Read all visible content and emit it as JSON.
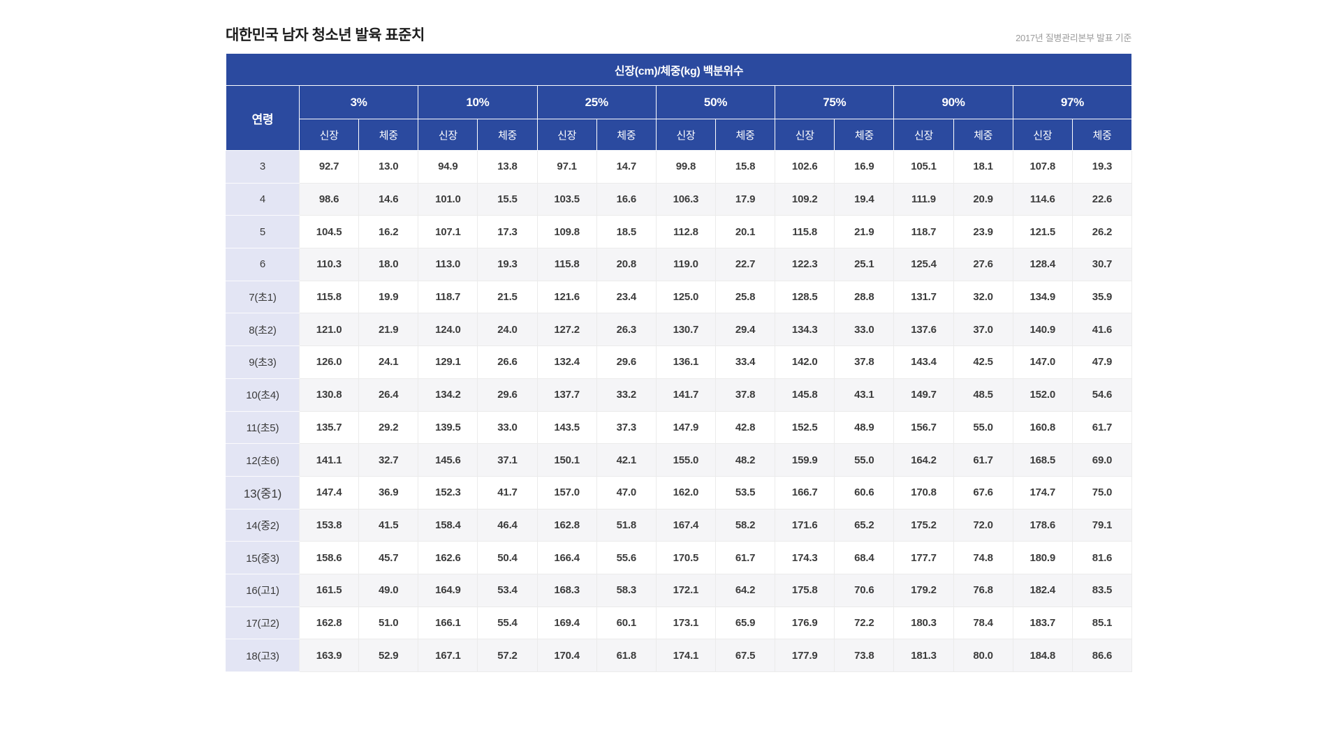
{
  "theme": {
    "header_bg": "#2b4a9f",
    "header_text": "#ffffff",
    "age_bg": "#e3e5f4",
    "alt_row_bg": "#f5f5f7",
    "grid": "#ebebeb",
    "text": "#3c3c3c",
    "title_color": "#1c1c1c",
    "note_color": "#9b9b9b",
    "page_bg": "#ffffff"
  },
  "chart_data": {
    "type": "table",
    "title": "대한민국 남자 청소년 발육 표준치",
    "source_note": "2017년 질병관리본부 발표 기준",
    "group_header": "신장(cm)/체중(kg) 백분위수",
    "age_column_header": "연령",
    "percentile_groups": [
      "3%",
      "10%",
      "25%",
      "50%",
      "75%",
      "90%",
      "97%"
    ],
    "subcolumns": [
      "신장",
      "체중"
    ],
    "rows": [
      {
        "age": "3",
        "values": [
          "92.7",
          "13.0",
          "94.9",
          "13.8",
          "97.1",
          "14.7",
          "99.8",
          "15.8",
          "102.6",
          "16.9",
          "105.1",
          "18.1",
          "107.8",
          "19.3"
        ]
      },
      {
        "age": "4",
        "values": [
          "98.6",
          "14.6",
          "101.0",
          "15.5",
          "103.5",
          "16.6",
          "106.3",
          "17.9",
          "109.2",
          "19.4",
          "111.9",
          "20.9",
          "114.6",
          "22.6"
        ]
      },
      {
        "age": "5",
        "values": [
          "104.5",
          "16.2",
          "107.1",
          "17.3",
          "109.8",
          "18.5",
          "112.8",
          "20.1",
          "115.8",
          "21.9",
          "118.7",
          "23.9",
          "121.5",
          "26.2"
        ]
      },
      {
        "age": "6",
        "values": [
          "110.3",
          "18.0",
          "113.0",
          "19.3",
          "115.8",
          "20.8",
          "119.0",
          "22.7",
          "122.3",
          "25.1",
          "125.4",
          "27.6",
          "128.4",
          "30.7"
        ]
      },
      {
        "age": "7(초1)",
        "values": [
          "115.8",
          "19.9",
          "118.7",
          "21.5",
          "121.6",
          "23.4",
          "125.0",
          "25.8",
          "128.5",
          "28.8",
          "131.7",
          "32.0",
          "134.9",
          "35.9"
        ]
      },
      {
        "age": "8(초2)",
        "values": [
          "121.0",
          "21.9",
          "124.0",
          "24.0",
          "127.2",
          "26.3",
          "130.7",
          "29.4",
          "134.3",
          "33.0",
          "137.6",
          "37.0",
          "140.9",
          "41.6"
        ]
      },
      {
        "age": "9(초3)",
        "values": [
          "126.0",
          "24.1",
          "129.1",
          "26.6",
          "132.4",
          "29.6",
          "136.1",
          "33.4",
          "142.0",
          "37.8",
          "143.4",
          "42.5",
          "147.0",
          "47.9"
        ]
      },
      {
        "age": "10(초4)",
        "values": [
          "130.8",
          "26.4",
          "134.2",
          "29.6",
          "137.7",
          "33.2",
          "141.7",
          "37.8",
          "145.8",
          "43.1",
          "149.7",
          "48.5",
          "152.0",
          "54.6"
        ]
      },
      {
        "age": "11(초5)",
        "values": [
          "135.7",
          "29.2",
          "139.5",
          "33.0",
          "143.5",
          "37.3",
          "147.9",
          "42.8",
          "152.5",
          "48.9",
          "156.7",
          "55.0",
          "160.8",
          "61.7"
        ]
      },
      {
        "age": "12(초6)",
        "values": [
          "141.1",
          "32.7",
          "145.6",
          "37.1",
          "150.1",
          "42.1",
          "155.0",
          "48.2",
          "159.9",
          "55.0",
          "164.2",
          "61.7",
          "168.5",
          "69.0"
        ]
      },
      {
        "age": "13(중1)",
        "age_large": true,
        "values": [
          "147.4",
          "36.9",
          "152.3",
          "41.7",
          "157.0",
          "47.0",
          "162.0",
          "53.5",
          "166.7",
          "60.6",
          "170.8",
          "67.6",
          "174.7",
          "75.0"
        ]
      },
      {
        "age": "14(중2)",
        "values": [
          "153.8",
          "41.5",
          "158.4",
          "46.4",
          "162.8",
          "51.8",
          "167.4",
          "58.2",
          "171.6",
          "65.2",
          "175.2",
          "72.0",
          "178.6",
          "79.1"
        ]
      },
      {
        "age": "15(중3)",
        "values": [
          "158.6",
          "45.7",
          "162.6",
          "50.4",
          "166.4",
          "55.6",
          "170.5",
          "61.7",
          "174.3",
          "68.4",
          "177.7",
          "74.8",
          "180.9",
          "81.6"
        ]
      },
      {
        "age": "16(고1)",
        "values": [
          "161.5",
          "49.0",
          "164.9",
          "53.4",
          "168.3",
          "58.3",
          "172.1",
          "64.2",
          "175.8",
          "70.6",
          "179.2",
          "76.8",
          "182.4",
          "83.5"
        ]
      },
      {
        "age": "17(고2)",
        "values": [
          "162.8",
          "51.0",
          "166.1",
          "55.4",
          "169.4",
          "60.1",
          "173.1",
          "65.9",
          "176.9",
          "72.2",
          "180.3",
          "78.4",
          "183.7",
          "85.1"
        ]
      },
      {
        "age": "18(고3)",
        "values": [
          "163.9",
          "52.9",
          "167.1",
          "57.2",
          "170.4",
          "61.8",
          "174.1",
          "67.5",
          "177.9",
          "73.8",
          "181.3",
          "80.0",
          "184.8",
          "86.6"
        ]
      }
    ]
  }
}
